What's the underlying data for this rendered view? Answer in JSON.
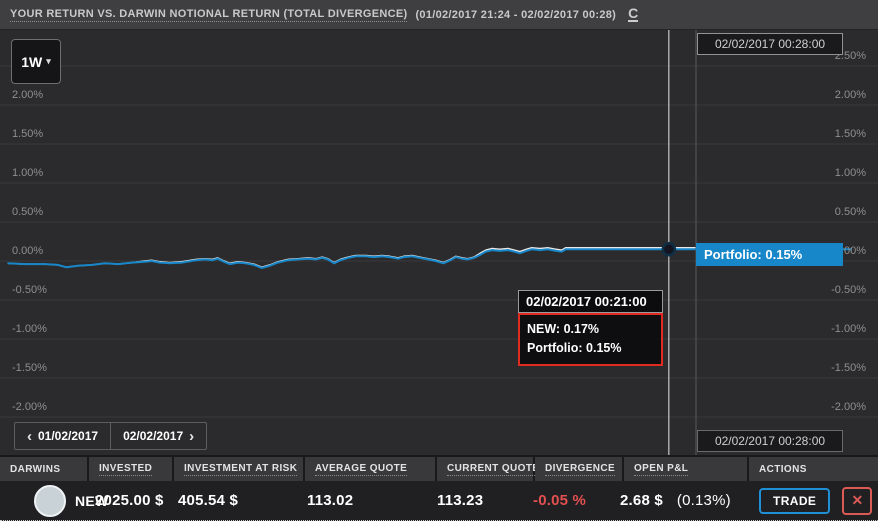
{
  "header": {
    "title": "YOUR RETURN VS. DARWIN NOTIONAL RETURN (TOTAL DIVERGENCE)",
    "date_range": "(01/02/2017 21:24 - 02/02/2017 00:28)",
    "refresh_icon": "C"
  },
  "chart": {
    "range_selector": {
      "label": "1W",
      "caret": "▾"
    },
    "crosshair_date_top": "02/02/2017 00:28:00",
    "crosshair_date_bottom": "02/02/2017 00:28:00",
    "portfolio_badge": "Portfolio: 0.15%",
    "tooltip": {
      "time": "02/02/2017 00:21:00",
      "lines": [
        "NEW: 0.17%",
        "Portfolio: 0.15%"
      ]
    },
    "nav": {
      "prev_icon": "‹",
      "prev_label": "01/02/2017",
      "next_label": "02/02/2017",
      "next_icon": "›"
    },
    "axis_left": [
      "2.00%",
      "1.50%",
      "1.00%",
      "0.50%",
      "0.00%",
      "-0.50%",
      "-1.00%",
      "-1.50%",
      "-2.00%"
    ],
    "axis_right": [
      "2.50%",
      "2.00%",
      "1.50%",
      "1.00%",
      "0.50%",
      "0.00%",
      "-0.50%",
      "-1.00%",
      "-1.50%",
      "-2.00%"
    ]
  },
  "chart_data": {
    "type": "line",
    "title": "YOUR RETURN VS. DARWIN NOTIONAL RETURN (TOTAL DIVERGENCE)",
    "x_range": [
      "01/02/2017 21:24",
      "02/02/2017 00:28"
    ],
    "ylim": [
      -2.5,
      2.5
    ],
    "y_unit": "%",
    "grid_pcts": [
      2.5,
      2.0,
      1.5,
      1.0,
      0.5,
      0.0,
      -0.5,
      -1.0,
      -1.5,
      -2.0
    ],
    "crosshair": {
      "x_fraction": 0.961,
      "time": "02/02/2017 00:21:00",
      "values": {
        "NEW": 0.17,
        "Portfolio": 0.15
      }
    },
    "series": [
      {
        "name": "NEW",
        "color": "#e9e9e9",
        "width": 1.5,
        "final_value_pct": 0.17,
        "points": [
          [
            0.011,
            -0.03
          ],
          [
            0.036,
            -0.04
          ],
          [
            0.065,
            -0.04
          ],
          [
            0.083,
            -0.05
          ],
          [
            0.095,
            -0.08
          ],
          [
            0.112,
            -0.06
          ],
          [
            0.132,
            -0.05
          ],
          [
            0.151,
            -0.03
          ],
          [
            0.17,
            -0.04
          ],
          [
            0.19,
            -0.02
          ],
          [
            0.208,
            0.0
          ],
          [
            0.218,
            0.01
          ],
          [
            0.23,
            -0.01
          ],
          [
            0.244,
            -0.02
          ],
          [
            0.261,
            -0.01
          ],
          [
            0.282,
            0.02
          ],
          [
            0.295,
            0.03
          ],
          [
            0.305,
            0.02
          ],
          [
            0.313,
            0.04
          ],
          [
            0.322,
            0.0
          ],
          [
            0.33,
            -0.03
          ],
          [
            0.342,
            -0.01
          ],
          [
            0.353,
            -0.02
          ],
          [
            0.365,
            -0.04
          ],
          [
            0.376,
            -0.08
          ],
          [
            0.388,
            -0.05
          ],
          [
            0.399,
            -0.01
          ],
          [
            0.414,
            0.02
          ],
          [
            0.428,
            0.03
          ],
          [
            0.443,
            0.04
          ],
          [
            0.454,
            0.03
          ],
          [
            0.463,
            0.05
          ],
          [
            0.471,
            0.03
          ],
          [
            0.48,
            -0.02
          ],
          [
            0.489,
            0.02
          ],
          [
            0.5,
            0.05
          ],
          [
            0.511,
            0.07
          ],
          [
            0.526,
            0.07
          ],
          [
            0.537,
            0.06
          ],
          [
            0.549,
            0.07
          ],
          [
            0.56,
            0.06
          ],
          [
            0.572,
            0.04
          ],
          [
            0.58,
            0.06
          ],
          [
            0.592,
            0.07
          ],
          [
            0.603,
            0.05
          ],
          [
            0.615,
            0.03
          ],
          [
            0.626,
            0.01
          ],
          [
            0.637,
            -0.02
          ],
          [
            0.647,
            0.02
          ],
          [
            0.655,
            0.06
          ],
          [
            0.664,
            0.04
          ],
          [
            0.672,
            0.03
          ],
          [
            0.681,
            0.05
          ],
          [
            0.69,
            0.1
          ],
          [
            0.698,
            0.14
          ],
          [
            0.707,
            0.16
          ],
          [
            0.718,
            0.15
          ],
          [
            0.73,
            0.16
          ],
          [
            0.739,
            0.14
          ],
          [
            0.747,
            0.12
          ],
          [
            0.756,
            0.15
          ],
          [
            0.764,
            0.17
          ],
          [
            0.776,
            0.16
          ],
          [
            0.787,
            0.17
          ],
          [
            0.799,
            0.15
          ],
          [
            0.807,
            0.14
          ],
          [
            0.813,
            0.17
          ],
          [
            1.0,
            0.17
          ]
        ]
      },
      {
        "name": "Portfolio",
        "color": "#1787c9",
        "width": 2,
        "final_value_pct": 0.15,
        "points": [
          [
            0.011,
            -0.03
          ],
          [
            0.036,
            -0.04
          ],
          [
            0.065,
            -0.04
          ],
          [
            0.083,
            -0.05
          ],
          [
            0.095,
            -0.08
          ],
          [
            0.112,
            -0.06
          ],
          [
            0.132,
            -0.05
          ],
          [
            0.151,
            -0.03
          ],
          [
            0.17,
            -0.04
          ],
          [
            0.19,
            -0.02
          ],
          [
            0.208,
            -0.01
          ],
          [
            0.218,
            0.0
          ],
          [
            0.23,
            -0.02
          ],
          [
            0.244,
            -0.03
          ],
          [
            0.261,
            -0.02
          ],
          [
            0.282,
            0.01
          ],
          [
            0.295,
            0.02
          ],
          [
            0.305,
            0.01
          ],
          [
            0.313,
            0.03
          ],
          [
            0.322,
            -0.01
          ],
          [
            0.33,
            -0.04
          ],
          [
            0.342,
            -0.02
          ],
          [
            0.353,
            -0.03
          ],
          [
            0.365,
            -0.05
          ],
          [
            0.376,
            -0.09
          ],
          [
            0.388,
            -0.06
          ],
          [
            0.399,
            -0.02
          ],
          [
            0.414,
            0.01
          ],
          [
            0.428,
            0.02
          ],
          [
            0.443,
            0.03
          ],
          [
            0.454,
            0.02
          ],
          [
            0.463,
            0.04
          ],
          [
            0.471,
            0.02
          ],
          [
            0.48,
            -0.03
          ],
          [
            0.489,
            0.01
          ],
          [
            0.5,
            0.04
          ],
          [
            0.511,
            0.06
          ],
          [
            0.526,
            0.06
          ],
          [
            0.537,
            0.05
          ],
          [
            0.549,
            0.06
          ],
          [
            0.56,
            0.05
          ],
          [
            0.572,
            0.03
          ],
          [
            0.58,
            0.05
          ],
          [
            0.592,
            0.06
          ],
          [
            0.603,
            0.04
          ],
          [
            0.615,
            0.02
          ],
          [
            0.626,
            0.0
          ],
          [
            0.637,
            -0.03
          ],
          [
            0.647,
            0.01
          ],
          [
            0.655,
            0.05
          ],
          [
            0.664,
            0.03
          ],
          [
            0.672,
            0.02
          ],
          [
            0.681,
            0.04
          ],
          [
            0.69,
            0.08
          ],
          [
            0.698,
            0.12
          ],
          [
            0.707,
            0.14
          ],
          [
            0.718,
            0.13
          ],
          [
            0.73,
            0.14
          ],
          [
            0.739,
            0.12
          ],
          [
            0.747,
            0.1
          ],
          [
            0.756,
            0.13
          ],
          [
            0.764,
            0.15
          ],
          [
            0.776,
            0.14
          ],
          [
            0.787,
            0.15
          ],
          [
            0.799,
            0.13
          ],
          [
            0.807,
            0.12
          ],
          [
            0.813,
            0.15
          ],
          [
            0.961,
            0.15
          ],
          [
            1.224,
            0.15
          ]
        ]
      }
    ]
  },
  "table": {
    "columns": [
      {
        "label": "DARWINS",
        "underline": false
      },
      {
        "label": "INVESTED",
        "underline": true
      },
      {
        "label": "INVESTMENT AT RISK",
        "underline": true
      },
      {
        "label": "AVERAGE QUOTE",
        "underline": true
      },
      {
        "label": "CURRENT QUOTE",
        "underline": true
      },
      {
        "label": "DIVERGENCE",
        "underline": true
      },
      {
        "label": "OPEN P&L",
        "underline": true
      },
      {
        "label": "ACTIONS",
        "underline": false
      }
    ],
    "row": {
      "name": "NEW",
      "invested": "2025.00 $",
      "investment_at_risk": "405.54 $",
      "average_quote": "113.02",
      "current_quote": "113.23",
      "divergence": "-0.05 %",
      "open_pl": "2.68 $",
      "open_pl_pct": "(0.13%)",
      "trade_label": "TRADE",
      "close_icon": "✕"
    }
  },
  "colors": {
    "accent_blue": "#1787c9",
    "negative_red": "#e25050",
    "tooltip_red_border": "#e02b20",
    "background": "#2b2b2d",
    "header_background": "#3f3f41",
    "gridline": "#3a3a3c"
  }
}
